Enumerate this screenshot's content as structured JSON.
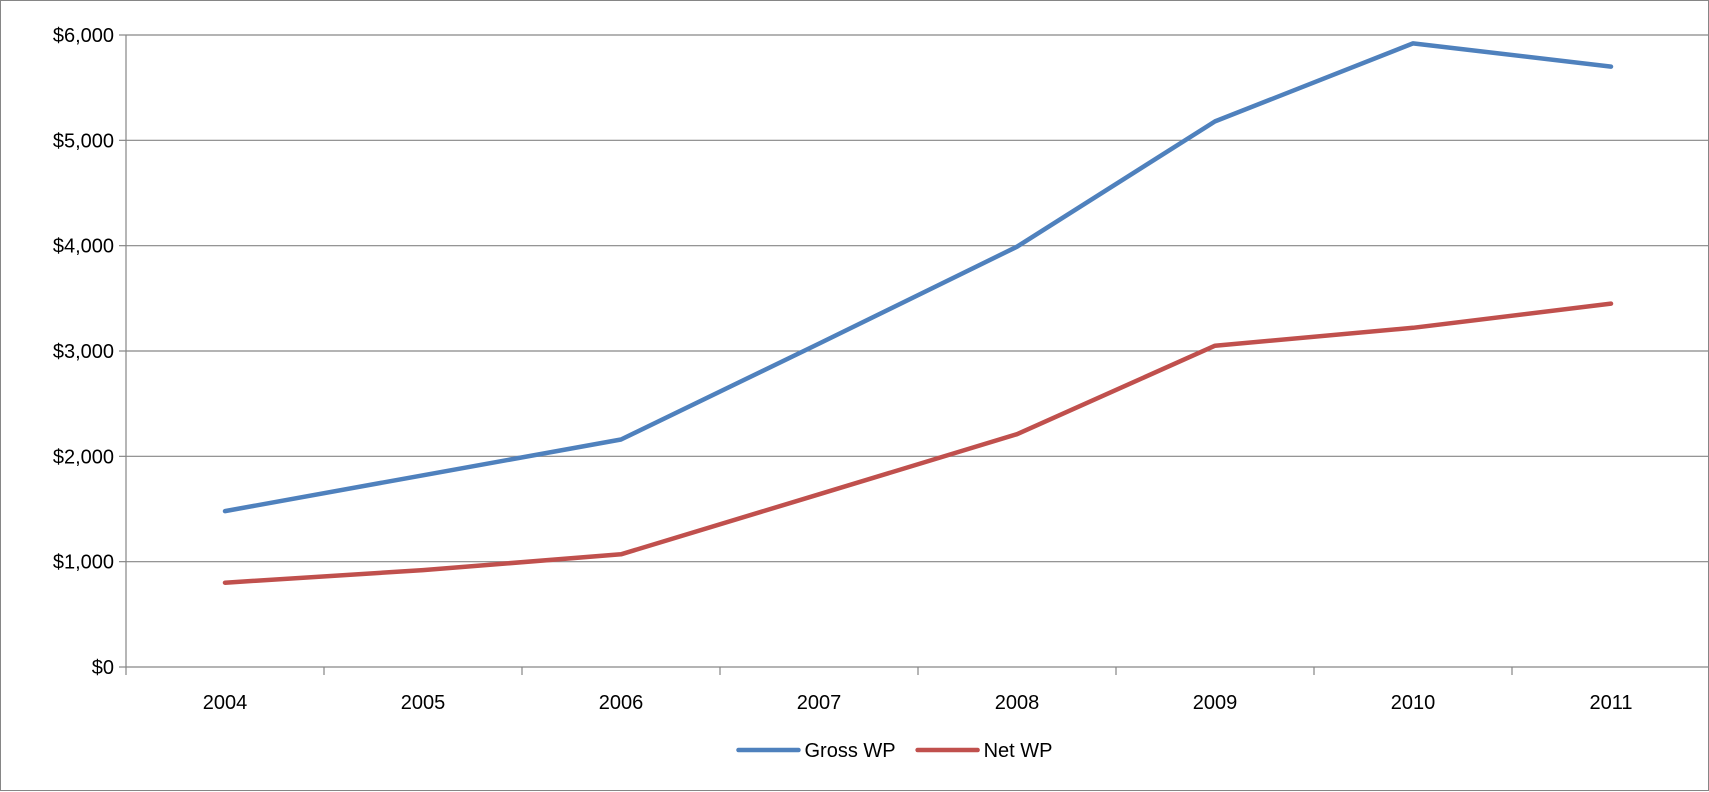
{
  "chart_data": {
    "type": "line",
    "title": "",
    "xlabel": "",
    "ylabel": "",
    "categories": [
      "2004",
      "2005",
      "2006",
      "2007",
      "2008",
      "2009",
      "2010",
      "2011"
    ],
    "ylim": [
      0,
      6000
    ],
    "yticks": [
      0,
      1000,
      2000,
      3000,
      4000,
      5000,
      6000
    ],
    "ytick_labels": [
      "$0",
      "$1,000",
      "$2,000",
      "$3,000",
      "$4,000",
      "$5,000",
      "$6,000"
    ],
    "grid": true,
    "legend_position": "bottom",
    "series": [
      {
        "name": "Gross WP",
        "color": "#4F81BD",
        "values": [
          1480,
          1820,
          2160,
          3070,
          3990,
          5180,
          5920,
          5700
        ]
      },
      {
        "name": "Net WP",
        "color": "#C0504D",
        "values": [
          800,
          920,
          1070,
          1640,
          2210,
          3050,
          3220,
          3450
        ]
      }
    ]
  }
}
